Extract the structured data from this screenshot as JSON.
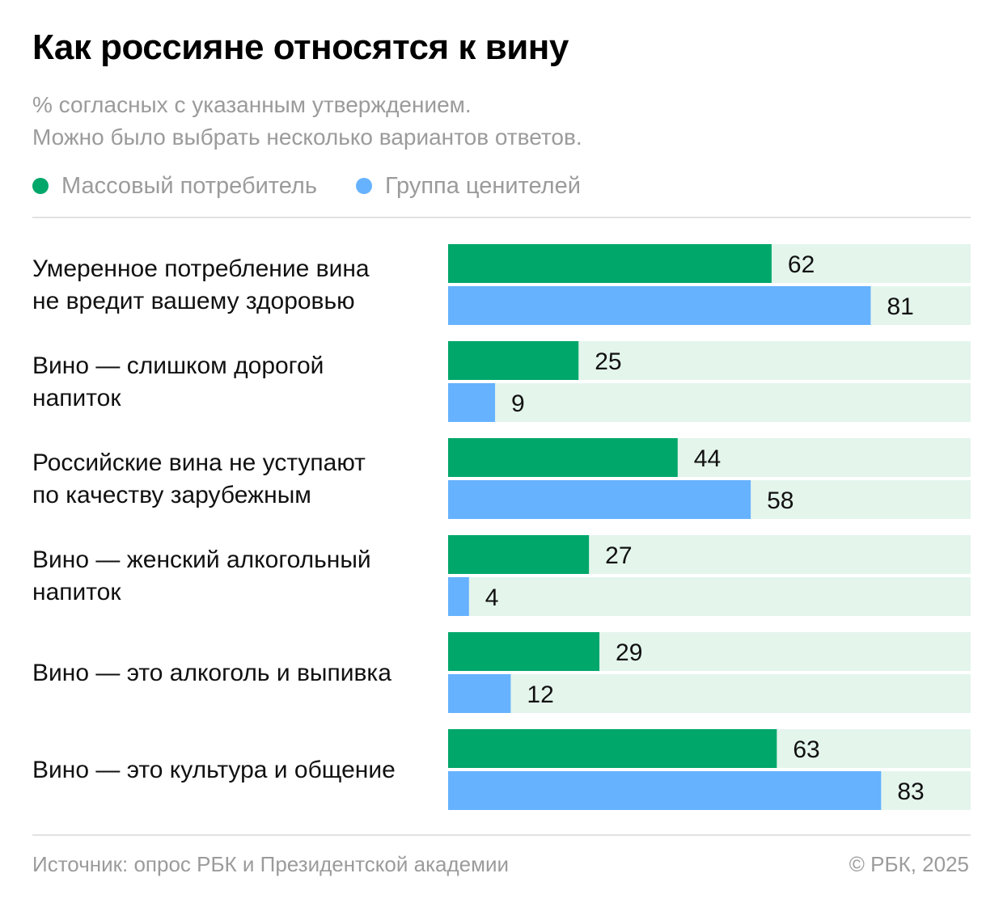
{
  "colors": {
    "series_mass": "#00a76a",
    "series_connoisseurs": "#66b2ff",
    "track": "#e4f5ec"
  },
  "chart_data": {
    "type": "bar",
    "orientation": "horizontal",
    "title": "Как россияне относятся к вину",
    "subtitle_lines": [
      "% согласных с указанным утверждением.",
      "Можно было выбрать несколько вариантов ответов."
    ],
    "categories": [
      [
        "Умеренное потребление вина",
        "не вредит вашему здоровью"
      ],
      [
        "Вино — слишком дорогой",
        "напиток"
      ],
      [
        "Российские вина не уступают",
        "по качеству зарубежным"
      ],
      [
        "Вино — женский алкогольный",
        "напиток"
      ],
      [
        "Вино — это алкоголь и выпивка"
      ],
      [
        "Вино — это культура и общение"
      ]
    ],
    "series": [
      {
        "name": "Массовый потребитель",
        "values": [
          62,
          25,
          44,
          27,
          29,
          63
        ]
      },
      {
        "name": "Группа ценителей",
        "values": [
          81,
          9,
          58,
          4,
          12,
          83
        ]
      }
    ],
    "xlim": [
      0,
      100
    ],
    "grid": false,
    "legend_position": "top-left",
    "source": "Источник: опрос РБК и Президентской академии",
    "copyright": "© РБК, 2025"
  }
}
